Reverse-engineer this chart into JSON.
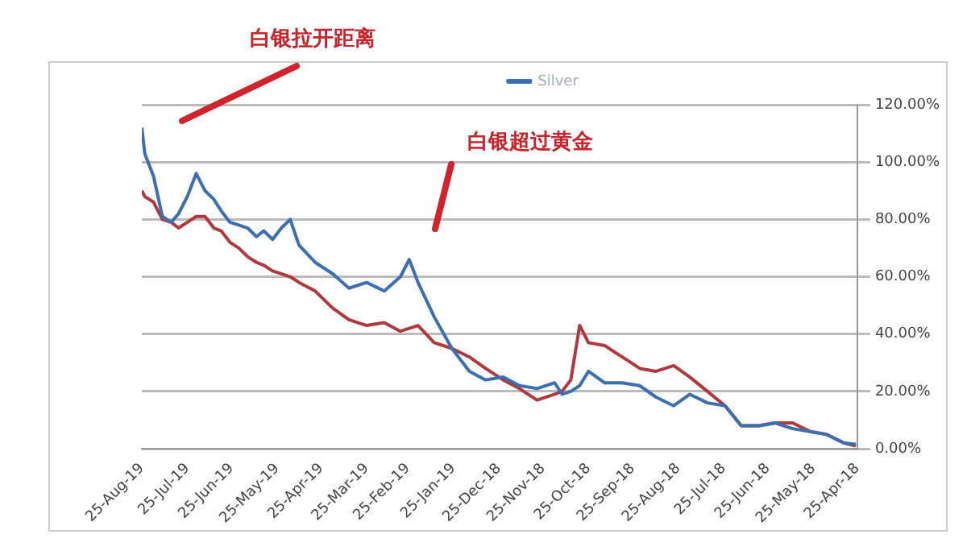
{
  "chart_data": {
    "type": "line",
    "annotations": [
      "白银拉开距离",
      "白银超过黄金"
    ],
    "x": [
      "2019-08-25",
      "2019-08-23",
      "2019-08-17",
      "2019-08-11",
      "2019-08-05",
      "2019-07-31",
      "2019-07-25",
      "2019-07-19",
      "2019-07-13",
      "2019-07-07",
      "2019-07-02",
      "2019-06-26",
      "2019-06-20",
      "2019-06-14",
      "2019-06-08",
      "2019-06-03",
      "2019-05-28",
      "2019-05-22",
      "2019-05-16",
      "2019-05-10",
      "2019-04-29",
      "2019-04-17",
      "2019-04-06",
      "2019-03-25",
      "2019-03-13",
      "2019-03-02",
      "2019-02-24",
      "2019-02-18",
      "2019-02-07",
      "2019-01-26",
      "2019-01-14",
      "2019-01-03",
      "2018-12-22",
      "2018-12-11",
      "2018-11-29",
      "2018-11-17",
      "2018-11-12",
      "2018-11-06",
      "2018-10-31",
      "2018-10-25",
      "2018-10-14",
      "2018-10-02",
      "2018-09-20",
      "2018-09-09",
      "2018-08-28",
      "2018-08-17",
      "2018-08-05",
      "2018-07-24",
      "2018-07-13",
      "2018-07-01",
      "2018-06-20",
      "2018-06-08",
      "2018-05-27",
      "2018-05-16",
      "2018-05-04",
      "2018-04-26"
    ],
    "series": [
      {
        "name": "Silver",
        "color": "#3b6fb0",
        "values": [
          112,
          103,
          95,
          81,
          79,
          82,
          88,
          96,
          90,
          87,
          83,
          79,
          78,
          77,
          74,
          76,
          73,
          77,
          80,
          71,
          65,
          61,
          56,
          58,
          55,
          60,
          66,
          58,
          46,
          35,
          27,
          24,
          25,
          22,
          21,
          23,
          19,
          20,
          22,
          27,
          23,
          23,
          22,
          18,
          15,
          19,
          16,
          15,
          8,
          8,
          9,
          7,
          6,
          5,
          2,
          1.6
        ]
      },
      {
        "color": "#b0393d",
        "values": [
          90,
          88,
          86,
          80,
          79,
          77,
          79,
          81,
          81,
          77,
          76,
          72,
          70,
          67,
          65,
          64,
          62,
          61,
          60,
          58,
          55,
          49,
          45,
          43,
          44,
          41,
          42,
          43,
          37,
          35,
          32,
          28,
          24,
          21,
          17,
          19,
          20,
          24,
          43,
          37,
          36,
          32,
          28,
          27,
          29,
          25,
          20,
          15,
          8,
          8,
          9,
          9,
          6,
          5,
          2,
          1
        ]
      }
    ],
    "xlim": [
      "2019-08-25",
      "2018-04-25"
    ],
    "xticks": [
      {
        "value": "2019-08-25",
        "label": "25-Aug-19"
      },
      {
        "value": "2019-07-25",
        "label": "25-Jul-19"
      },
      {
        "value": "2019-06-25",
        "label": "25-Jun-19"
      },
      {
        "value": "2019-05-25",
        "label": "25-May-19"
      },
      {
        "value": "2019-04-25",
        "label": "25-Apr-19"
      },
      {
        "value": "2019-03-25",
        "label": "25-Mar-19"
      },
      {
        "value": "2019-02-25",
        "label": "25-Feb-19"
      },
      {
        "value": "2019-01-25",
        "label": "25-Jan-19"
      },
      {
        "value": "2018-12-25",
        "label": "25-Dec-18"
      },
      {
        "value": "2018-11-25",
        "label": "25-Nov-18"
      },
      {
        "value": "2018-10-25",
        "label": "25-Oct-18"
      },
      {
        "value": "2018-09-25",
        "label": "25-Sep-18"
      },
      {
        "value": "2018-08-25",
        "label": "25-Aug-18"
      },
      {
        "value": "2018-07-25",
        "label": "25-Jul-18"
      },
      {
        "value": "2018-06-25",
        "label": "25-Jun-18"
      },
      {
        "value": "2018-05-25",
        "label": "25-May-18"
      },
      {
        "value": "2018-04-25",
        "label": "25-Apr-18"
      }
    ],
    "ylim": [
      0,
      120
    ],
    "yticks": [
      {
        "value": 0,
        "label": "0.00%"
      },
      {
        "value": 20,
        "label": "20.00%"
      },
      {
        "value": 40,
        "label": "40.00%"
      },
      {
        "value": 60,
        "label": "60.00%"
      },
      {
        "value": 80,
        "label": "80.00%"
      },
      {
        "value": 100,
        "label": "100.00%"
      },
      {
        "value": 120,
        "label": "120.00%"
      }
    ],
    "grid": "y",
    "legend": "top",
    "marker": "none",
    "line_style": "solid"
  }
}
